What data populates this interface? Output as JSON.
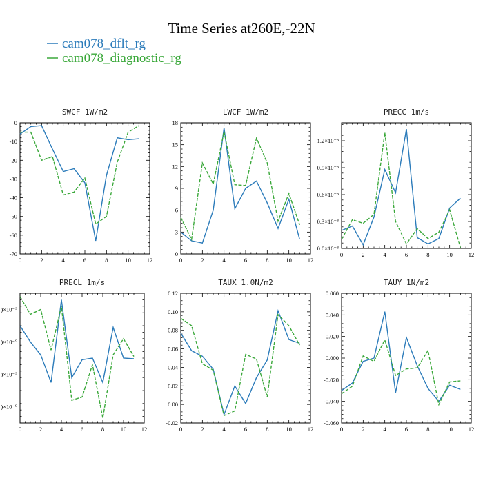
{
  "figure_title": "Time Series at260E,-22N",
  "legend": [
    {
      "name": "cam078_dflt_rg",
      "color": "#2b7bba",
      "dashed": false
    },
    {
      "name": "cam078_diagnostic_rg",
      "color": "#3aa83a",
      "dashed": true
    }
  ],
  "chart_data": [
    {
      "type": "line",
      "title": "SWCF   1W/m2",
      "xlim": [
        0,
        12
      ],
      "xticks": [
        0,
        2,
        4,
        6,
        8,
        10,
        12
      ],
      "xtick_labels": [
        "0",
        "2",
        "4",
        "6",
        "8",
        "10",
        "12"
      ],
      "ylim": [
        -70,
        0
      ],
      "yticks": [
        -70,
        -60,
        -50,
        -40,
        -30,
        -20,
        -10,
        0
      ],
      "ytick_labels": [
        "-70",
        "-60",
        "-50",
        "-40",
        "-30",
        "-20",
        "-10",
        "0"
      ],
      "x": [
        0,
        1,
        2,
        3,
        4,
        5,
        6,
        7,
        8,
        9,
        10,
        11
      ],
      "series": [
        {
          "name": "cam078_dflt_rg",
          "values": [
            -6,
            -2,
            -1.5,
            -14,
            -26,
            -24.5,
            -32,
            -63,
            -28,
            -8,
            -9,
            -8.5
          ]
        },
        {
          "name": "cam078_diagnostic_rg",
          "values": [
            -5,
            -5,
            -20,
            -18,
            -38.5,
            -37,
            -29.5,
            -54,
            -50,
            -21,
            -5,
            -1.5
          ]
        }
      ]
    },
    {
      "type": "line",
      "title": "LWCF   1W/m2",
      "xlim": [
        0,
        12
      ],
      "xticks": [
        0,
        2,
        4,
        6,
        8,
        10,
        12
      ],
      "xtick_labels": [
        "0",
        "2",
        "4",
        "6",
        "8",
        "10",
        "12"
      ],
      "ylim": [
        0,
        18
      ],
      "yticks": [
        0,
        3,
        6,
        9,
        12,
        15,
        18
      ],
      "ytick_labels": [
        "0",
        "3",
        "6",
        "9",
        "12",
        "15",
        "18"
      ],
      "x": [
        0,
        1,
        2,
        3,
        4,
        5,
        6,
        7,
        8,
        9,
        10,
        11
      ],
      "series": [
        {
          "name": "cam078_dflt_rg",
          "values": [
            3,
            1.8,
            1.5,
            6,
            17.3,
            6.2,
            9,
            10,
            7,
            3.5,
            7.5,
            2
          ]
        },
        {
          "name": "cam078_diagnostic_rg",
          "values": [
            5,
            2,
            12.5,
            9.6,
            16.8,
            9.5,
            9.4,
            15.9,
            12.5,
            4.5,
            8.3,
            4
          ]
        }
      ]
    },
    {
      "type": "line",
      "title": "PRECC   1m/s",
      "xlim": [
        0,
        12
      ],
      "xticks": [
        0,
        2,
        4,
        6,
        8,
        10,
        12
      ],
      "xtick_labels": [
        "0",
        "2",
        "4",
        "6",
        "8",
        "10",
        "12"
      ],
      "ylim": [
        0,
        1.4e-08
      ],
      "yticks": [
        0,
        3e-09,
        6e-09,
        9e-09,
        1.2e-08
      ],
      "ytick_labels": [
        "0.0×10⁻⁸",
        "0.3×10⁻⁸",
        "0.6×10⁻⁸",
        "0.9×10⁻⁸",
        "1.2×10⁻⁸"
      ],
      "x": [
        0,
        1,
        2,
        3,
        4,
        5,
        6,
        7,
        8,
        9,
        10,
        11
      ],
      "series": [
        {
          "name": "cam078_dflt_rg",
          "values": [
            2e-09,
            2.5e-09,
            4e-10,
            3.5e-09,
            8.8e-09,
            6.2e-09,
            1.33e-08,
            1.2e-09,
            5e-10,
            1.1e-09,
            4.5e-09,
            5.6e-09
          ]
        },
        {
          "name": "cam078_diagnostic_rg",
          "values": [
            1e-09,
            3.2e-09,
            2.8e-09,
            3.8e-09,
            1.29e-08,
            3e-09,
            5e-10,
            2.2e-09,
            1.1e-09,
            1.8e-09,
            4.3e-09,
            1e-10
          ]
        }
      ]
    },
    {
      "type": "line",
      "title": "PRECL   1m/s",
      "xlim": [
        0,
        12
      ],
      "xticks": [
        0,
        2,
        4,
        6,
        8,
        10,
        12
      ],
      "xtick_labels": [
        "0",
        "2",
        "4",
        "6",
        "8",
        "10",
        "12"
      ],
      "ylim": [
        0.5,
        4.5
      ],
      "yticks": [
        1,
        2,
        3,
        4
      ],
      "ytick_labels": [
        ")×10⁻⁹",
        ")×10⁻⁹",
        ")×10⁻⁹",
        ")×10⁻⁹"
      ],
      "x": [
        0,
        1,
        2,
        3,
        4,
        5,
        6,
        7,
        8,
        9,
        10,
        11
      ],
      "series": [
        {
          "name": "cam078_dflt_rg",
          "values": [
            3.5,
            3.0,
            2.6,
            1.75,
            4.3,
            1.9,
            2.45,
            2.5,
            1.75,
            3.45,
            2.5,
            2.48
          ]
        },
        {
          "name": "cam078_diagnostic_rg",
          "values": [
            4.4,
            3.85,
            4.0,
            2.75,
            4.1,
            1.2,
            1.3,
            2.3,
            0.65,
            2.6,
            3.1,
            2.55
          ]
        }
      ]
    },
    {
      "type": "line",
      "title": "TAUX   1.0N/m2",
      "xlim": [
        0,
        12
      ],
      "xticks": [
        0,
        2,
        4,
        6,
        8,
        10,
        12
      ],
      "xtick_labels": [
        "0",
        "2",
        "4",
        "6",
        "8",
        "10",
        "12"
      ],
      "ylim": [
        -0.02,
        0.12
      ],
      "yticks": [
        -0.02,
        0,
        0.02,
        0.04,
        0.06,
        0.08,
        0.1,
        0.12
      ],
      "ytick_labels": [
        "-0.02",
        "0.00",
        "0.02",
        "0.04",
        "0.06",
        "0.08",
        "0.10",
        "0.12"
      ],
      "x": [
        0,
        1,
        2,
        3,
        4,
        5,
        6,
        7,
        8,
        9,
        10,
        11
      ],
      "series": [
        {
          "name": "cam078_dflt_rg",
          "values": [
            0.077,
            0.058,
            0.052,
            0.038,
            -0.011,
            0.02,
            0.001,
            0.029,
            0.048,
            0.101,
            0.07,
            0.066
          ]
        },
        {
          "name": "cam078_diagnostic_rg",
          "values": [
            0.093,
            0.085,
            0.044,
            0.037,
            -0.012,
            -0.007,
            0.054,
            0.049,
            0.008,
            0.097,
            0.085,
            0.064
          ]
        }
      ]
    },
    {
      "type": "line",
      "title": "TAUY   1N/m2",
      "xlim": [
        0,
        12
      ],
      "xticks": [
        0,
        2,
        4,
        6,
        8,
        10,
        12
      ],
      "xtick_labels": [
        "0",
        "2",
        "4",
        "6",
        "8",
        "10",
        "12"
      ],
      "ylim": [
        -0.06,
        0.06
      ],
      "yticks": [
        -0.06,
        -0.04,
        -0.02,
        0,
        0.02,
        0.04,
        0.06
      ],
      "ytick_labels": [
        "-0.060",
        "-0.040",
        "-0.020",
        "0.000",
        "0.020",
        "0.040",
        "0.060"
      ],
      "x": [
        0,
        1,
        2,
        3,
        4,
        5,
        6,
        7,
        8,
        9,
        10,
        11
      ],
      "series": [
        {
          "name": "cam078_dflt_rg",
          "values": [
            -0.03,
            -0.023,
            -0.003,
            0.0,
            0.043,
            -0.032,
            0.019,
            -0.007,
            -0.028,
            -0.04,
            -0.025,
            -0.029
          ]
        },
        {
          "name": "cam078_diagnostic_rg",
          "values": [
            -0.033,
            -0.026,
            0.002,
            -0.003,
            0.017,
            -0.016,
            -0.01,
            -0.009,
            0.007,
            -0.043,
            -0.022,
            -0.021
          ]
        }
      ]
    }
  ]
}
